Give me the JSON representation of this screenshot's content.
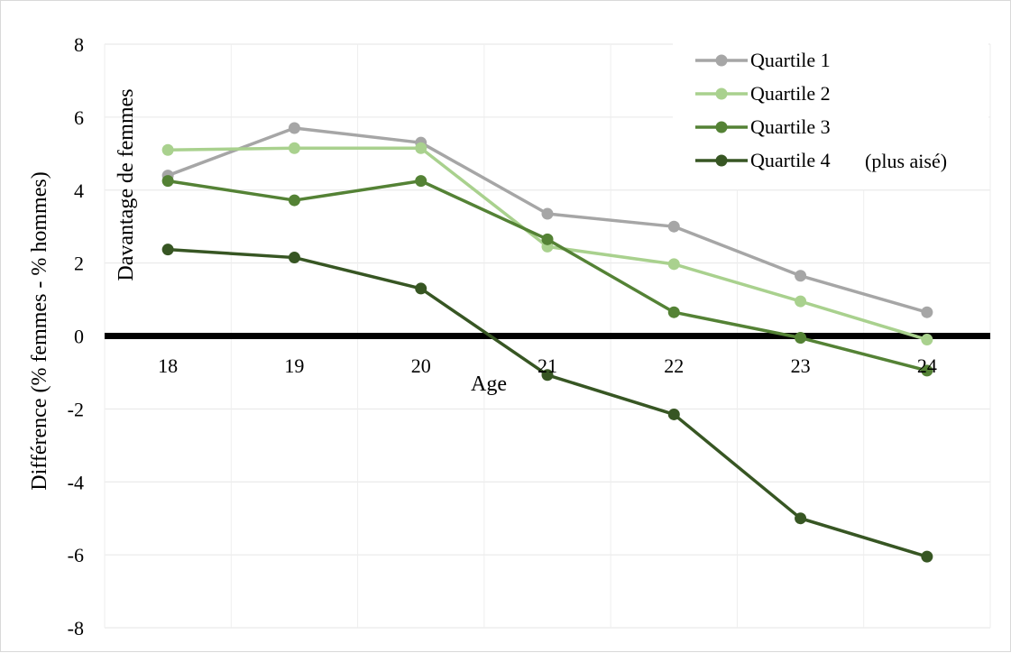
{
  "chart_data": {
    "type": "line",
    "xlabel": "Age",
    "ylabel": "Différence (% femmes - % hommes)",
    "annotation": "Davantage de femmes",
    "legend_note": "(plus aisé)",
    "legend_position": "top-right",
    "grid": true,
    "ylim": [
      -8,
      8
    ],
    "yticks": [
      8,
      6,
      4,
      2,
      0,
      -2,
      -4,
      -6,
      -8
    ],
    "yticks_text": [
      "8",
      "6",
      "4",
      "2",
      "0",
      "-2",
      "-4",
      "-6",
      "-8"
    ],
    "x": [
      "18",
      "19",
      "20",
      "21",
      "22",
      "23",
      "24"
    ],
    "series": [
      {
        "name": "Quartile 1",
        "color": "#a6a6a6",
        "values": [
          4.4,
          5.7,
          5.3,
          3.35,
          3.0,
          1.65,
          0.65
        ]
      },
      {
        "name": "Quartile 2",
        "color": "#a9d18e",
        "values": [
          5.1,
          5.15,
          5.15,
          2.45,
          1.97,
          0.95,
          -0.1
        ]
      },
      {
        "name": "Quartile 3",
        "color": "#548235",
        "values": [
          4.25,
          3.72,
          4.25,
          2.65,
          0.65,
          -0.05,
          -0.95
        ]
      },
      {
        "name": "Quartile 4",
        "color": "#375623",
        "values": [
          2.37,
          2.15,
          1.3,
          -1.07,
          -2.15,
          -5.0,
          -6.05
        ]
      }
    ]
  }
}
